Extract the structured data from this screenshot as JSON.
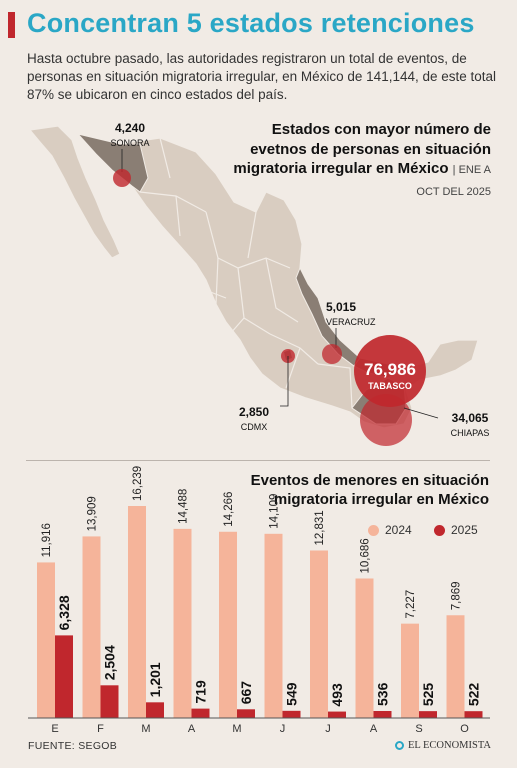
{
  "header": {
    "title": "Concentran 5 estados retenciones",
    "intro": "Hasta octubre pasado, las autoridades registraron un total de eventos, de personas en situación migratoria irregular, en México de 141,144, de este total 87% se ubicaron en cinco estados del país."
  },
  "map": {
    "title": "Estados con mayor número de evetnos de personas en situación migratoria irregular en México",
    "period": "| ENE A OCT DEL 2025",
    "states": [
      {
        "name": "SONORA",
        "value": "4,240"
      },
      {
        "name": "VERACRUZ",
        "value": "5,015"
      },
      {
        "name": "TABASCO",
        "value": "76,986"
      },
      {
        "name": "CDMX",
        "value": "2,850"
      },
      {
        "name": "CHIAPAS",
        "value": "34,065"
      }
    ]
  },
  "chart": {
    "title": "Eventos de menores en situación migratoria irregular en México",
    "legend_2024": "2024",
    "legend_2025": "2025"
  },
  "footer": {
    "source": "FUENTE: SEGOB",
    "logo": "EL ECONOMISTA"
  },
  "colors": {
    "accent": "#c0272d",
    "title_blue": "#2aa7c6",
    "bar_2024": "#f5b49a",
    "bar_2025": "#c0272d",
    "map_fill": "#d9cdc1",
    "map_highlight": "#8a7e74"
  },
  "chart_data": {
    "type": "bar",
    "categories": [
      "E",
      "F",
      "M",
      "A",
      "M",
      "J",
      "J",
      "A",
      "S",
      "O"
    ],
    "series": [
      {
        "name": "2024",
        "values": [
          11916,
          13909,
          16239,
          14488,
          14266,
          14109,
          12831,
          10686,
          7227,
          7869
        ],
        "labels": [
          "11,916",
          "13,909",
          "16,239",
          "14,488",
          "14,266",
          "14,109",
          "12,831",
          "10,686",
          "7,227",
          "7,869"
        ]
      },
      {
        "name": "2025",
        "values": [
          6328,
          2504,
          1201,
          719,
          667,
          549,
          493,
          536,
          525,
          522
        ],
        "labels": [
          "6,328",
          "2,504",
          "1,201",
          "719",
          "667",
          "549",
          "493",
          "536",
          "525",
          "522"
        ]
      }
    ],
    "xlabel": "",
    "ylabel": "",
    "ylim": [
      0,
      16239
    ]
  }
}
